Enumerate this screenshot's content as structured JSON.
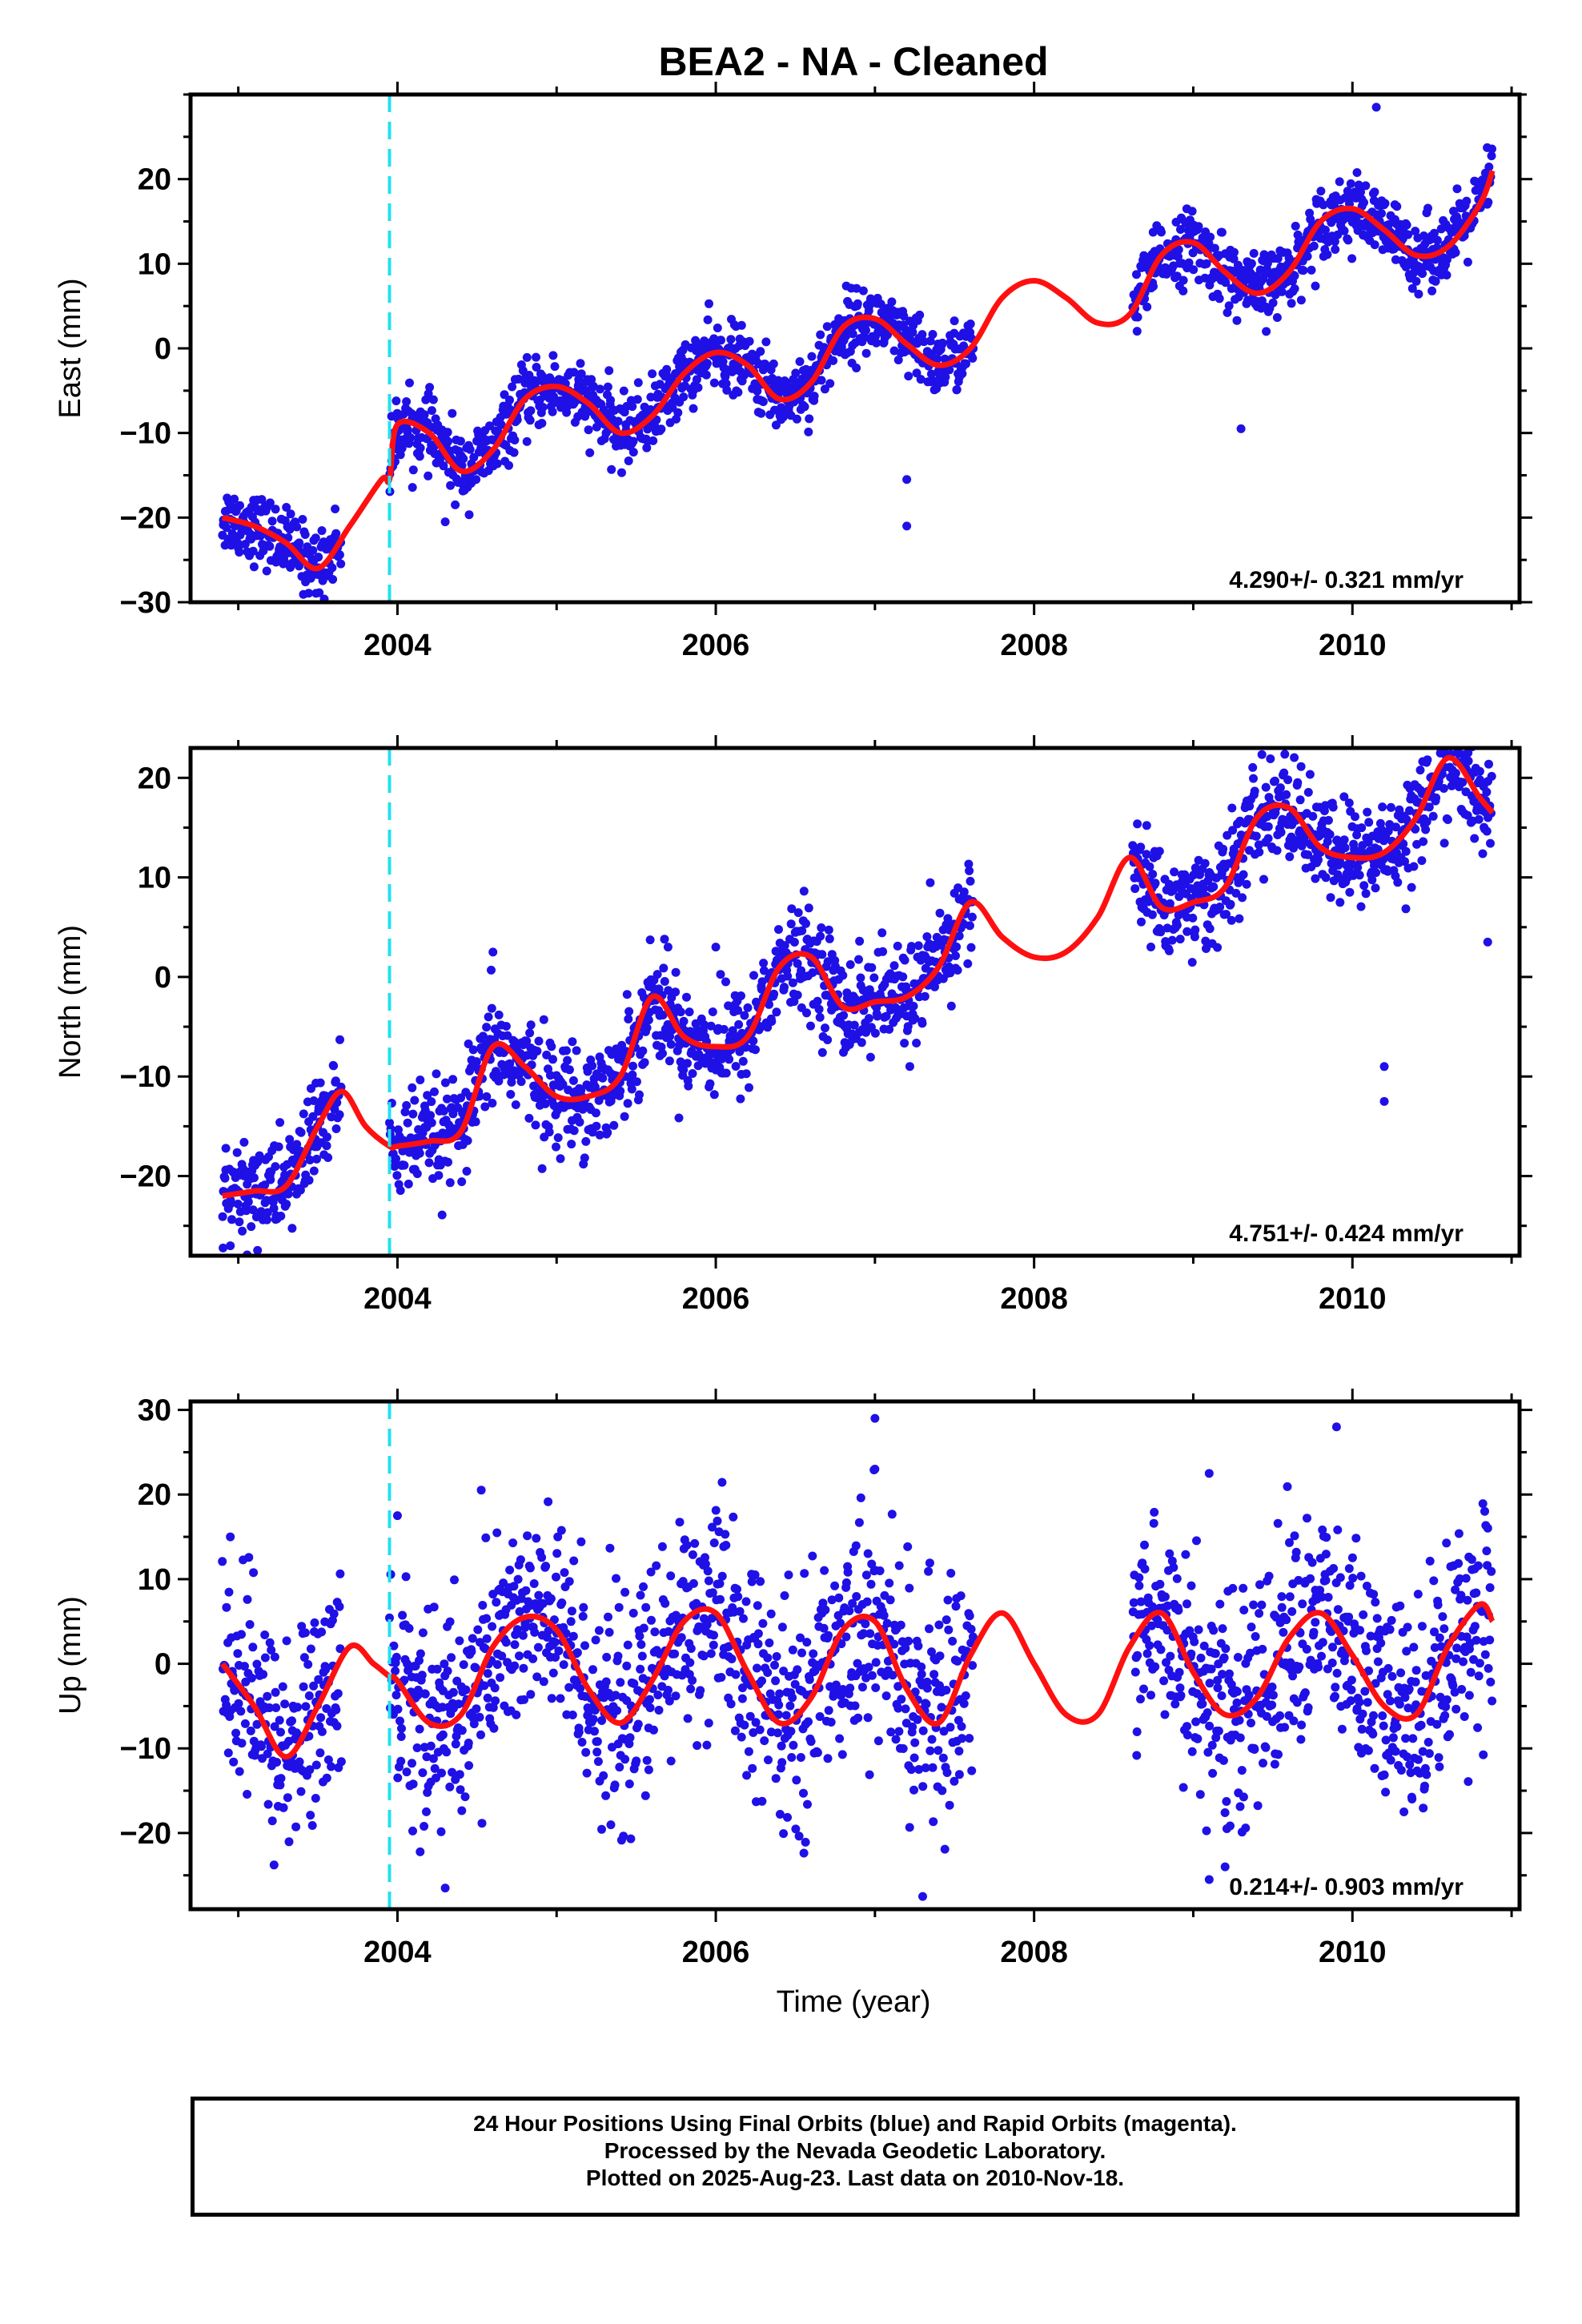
{
  "title": "BEA2  - NA - Cleaned",
  "xlabel": "Time (year)",
  "colors": {
    "points": "#1f10e6",
    "model": "#ff1010",
    "step": "#22e0f0",
    "axis": "#000000"
  },
  "footer": {
    "line1": "24 Hour Positions Using Final Orbits (blue) and Rapid Orbits (magenta).",
    "line2": "Processed by the Nevada Geodetic Laboratory.",
    "line3": "Plotted on 2025-Aug-23. Last data on 2010-Nov-18."
  },
  "chart_data": [
    {
      "type": "scatter",
      "component": "east",
      "ylabel": "East (mm)",
      "xlim": [
        2002.7,
        2011.05
      ],
      "ylim": [
        -30,
        30
      ],
      "xticks": [
        2004,
        2006,
        2008,
        2010
      ],
      "yticks": [
        -30,
        -20,
        -10,
        0,
        10,
        20
      ],
      "rate_label": "4.290+/- 0.321 mm/yr",
      "step_epoch": 2003.95,
      "data_segments": [
        [
          2002.9,
          2003.65
        ],
        [
          2003.95,
          2007.62
        ],
        [
          2008.62,
          2010.88
        ]
      ],
      "model_curve": {
        "x": [
          2002.9,
          2003.1,
          2003.3,
          2003.5,
          2003.7,
          2003.9,
          2003.95,
          2004.0,
          2004.2,
          2004.4,
          2004.6,
          2004.8,
          2005.0,
          2005.2,
          2005.4,
          2005.6,
          2005.8,
          2006.0,
          2006.2,
          2006.4,
          2006.6,
          2006.8,
          2007.0,
          2007.2,
          2007.4,
          2007.6,
          2007.8,
          2008.0,
          2008.2,
          2008.4,
          2008.6,
          2008.8,
          2009.0,
          2009.2,
          2009.4,
          2009.6,
          2009.8,
          2010.0,
          2010.2,
          2010.4,
          2010.6,
          2010.8,
          2010.88
        ],
        "y": [
          -20,
          -21,
          -23,
          -26,
          -21,
          -15.5,
          -15.5,
          -9,
          -10,
          -14.5,
          -12,
          -6,
          -4.5,
          -6.5,
          -10,
          -8,
          -3,
          -0.5,
          -2,
          -6,
          -4,
          2.5,
          3.5,
          0.5,
          -2,
          0,
          6,
          8,
          6,
          3,
          4,
          11,
          12.5,
          9,
          6.5,
          9,
          15,
          16.5,
          14,
          11,
          12,
          17,
          21
        ]
      },
      "outliers": [
        [
          2004.3,
          -20.5
        ],
        [
          2007.2,
          -15.5
        ],
        [
          2007.2,
          -21
        ],
        [
          2009.3,
          -9.5
        ],
        [
          2010.15,
          28.5
        ]
      ]
    },
    {
      "type": "scatter",
      "component": "north",
      "ylabel": "North (mm)",
      "xlim": [
        2002.7,
        2011.05
      ],
      "ylim": [
        -28,
        23
      ],
      "xticks": [
        2004,
        2006,
        2008,
        2010
      ],
      "yticks": [
        -20,
        -10,
        0,
        10,
        20
      ],
      "rate_label": "4.751+/- 0.424 mm/yr",
      "step_epoch": 2003.95,
      "data_segments": [
        [
          2002.9,
          2003.65
        ],
        [
          2003.95,
          2007.62
        ],
        [
          2008.62,
          2010.88
        ]
      ],
      "model_curve": {
        "x": [
          2002.9,
          2003.1,
          2003.3,
          2003.5,
          2003.65,
          2003.8,
          2003.95,
          2004.0,
          2004.2,
          2004.4,
          2004.6,
          2004.8,
          2005.0,
          2005.2,
          2005.4,
          2005.6,
          2005.8,
          2006.0,
          2006.2,
          2006.4,
          2006.6,
          2006.8,
          2007.0,
          2007.2,
          2007.4,
          2007.6,
          2007.8,
          2008.0,
          2008.2,
          2008.4,
          2008.6,
          2008.8,
          2009.0,
          2009.2,
          2009.4,
          2009.6,
          2009.8,
          2010.0,
          2010.2,
          2010.4,
          2010.6,
          2010.8,
          2010.88
        ],
        "y": [
          -22,
          -21.5,
          -21,
          -15,
          -11.5,
          -15,
          -17,
          -17,
          -16.5,
          -15.5,
          -7,
          -9,
          -12,
          -12,
          -10,
          -2,
          -6,
          -7,
          -6,
          1,
          2,
          -3,
          -2.5,
          -2,
          1,
          7.5,
          4,
          2,
          2.5,
          6,
          12,
          7,
          7.5,
          9,
          16,
          17,
          13,
          12,
          12.5,
          16,
          22,
          18,
          16.5
        ]
      },
      "outliers": [
        [
          2002.95,
          -27
        ],
        [
          2003.3,
          -21.5
        ],
        [
          2004.6,
          2.5
        ],
        [
          2005.7,
          3
        ],
        [
          2006.0,
          3
        ],
        [
          2010.2,
          -9
        ],
        [
          2010.2,
          -12.5
        ],
        [
          2010.85,
          3.5
        ]
      ]
    },
    {
      "type": "scatter",
      "component": "up",
      "ylabel": "Up (mm)",
      "xlim": [
        2002.7,
        2011.05
      ],
      "ylim": [
        -29,
        31
      ],
      "xticks": [
        2004,
        2006,
        2008,
        2010
      ],
      "yticks": [
        -20,
        -10,
        0,
        10,
        20,
        30
      ],
      "rate_label": "0.214+/- 0.903 mm/yr",
      "step_epoch": 2003.95,
      "data_segments": [
        [
          2002.9,
          2003.65
        ],
        [
          2003.95,
          2007.62
        ],
        [
          2008.62,
          2010.88
        ]
      ],
      "model_curve": {
        "x": [
          2002.9,
          2003.1,
          2003.3,
          2003.5,
          2003.7,
          2003.85,
          2003.95,
          2004.0,
          2004.2,
          2004.4,
          2004.6,
          2004.8,
          2005.0,
          2005.2,
          2005.4,
          2005.6,
          2005.8,
          2006.0,
          2006.2,
          2006.4,
          2006.6,
          2006.8,
          2007.0,
          2007.2,
          2007.4,
          2007.6,
          2007.8,
          2008.0,
          2008.2,
          2008.4,
          2008.6,
          2008.8,
          2009.0,
          2009.2,
          2009.4,
          2009.6,
          2009.8,
          2010.0,
          2010.2,
          2010.4,
          2010.6,
          2010.8,
          2010.88
        ],
        "y": [
          0,
          -5,
          -11,
          -5,
          2,
          0,
          -1.5,
          -2,
          -7,
          -6,
          2,
          5.5,
          4,
          -3,
          -7,
          -2,
          5,
          6,
          -1,
          -7,
          -4,
          4,
          5,
          -3,
          -7,
          1,
          6,
          0,
          -6,
          -6,
          2,
          6,
          -1,
          -6,
          -4,
          3,
          6,
          1,
          -5,
          -6,
          2,
          7,
          5
        ]
      },
      "outliers": [
        [
          2002.95,
          15
        ],
        [
          2004.0,
          17.5
        ],
        [
          2007.0,
          29
        ],
        [
          2007.0,
          23
        ],
        [
          2009.1,
          22.5
        ],
        [
          2009.9,
          28
        ],
        [
          2004.3,
          -26.5
        ],
        [
          2007.3,
          -27.5
        ],
        [
          2009.1,
          -25.5
        ],
        [
          2009.2,
          -24
        ]
      ]
    }
  ]
}
